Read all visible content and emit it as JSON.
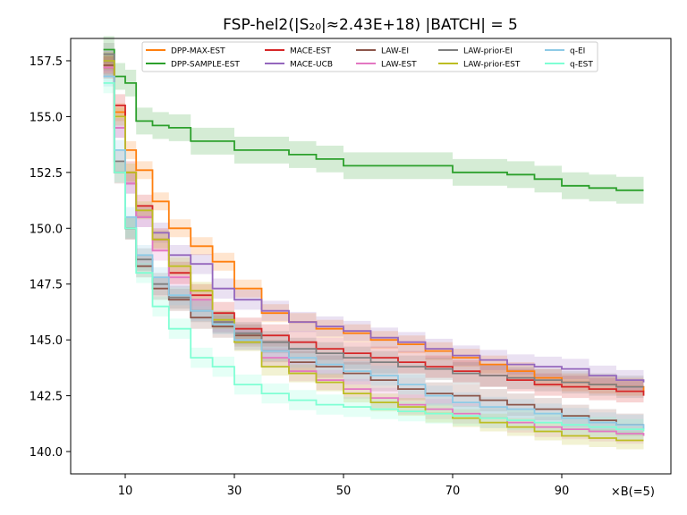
{
  "chart_data": {
    "type": "line",
    "title": "FSP-hel2(|S₂₀|≈2.43E+18) |BATCH| = 5",
    "xlabel": "×B(=5)",
    "ylabel": "",
    "xlim": [
      0,
      110
    ],
    "ylim": [
      139.0,
      158.5
    ],
    "xticks": [
      10,
      30,
      50,
      70,
      90
    ],
    "yticks": [
      140.0,
      142.5,
      145.0,
      147.5,
      150.0,
      152.5,
      155.0,
      157.5
    ],
    "x": [
      6,
      8,
      10,
      12,
      15,
      18,
      22,
      26,
      30,
      35,
      40,
      45,
      50,
      55,
      60,
      65,
      70,
      75,
      80,
      85,
      90,
      95,
      100,
      105
    ],
    "legend": {
      "position": "top-center",
      "columns": 6
    },
    "series": [
      {
        "name": "DPP-MAX-EST",
        "color": "#ff7f0e",
        "band": 0.4,
        "values": [
          157.3,
          155.2,
          153.5,
          152.6,
          151.2,
          150.0,
          149.2,
          148.5,
          147.3,
          146.2,
          145.8,
          145.5,
          145.3,
          145.0,
          144.8,
          144.5,
          144.2,
          143.9,
          143.6,
          143.3,
          143.1,
          143.0,
          142.9,
          142.7
        ]
      },
      {
        "name": "DPP-SAMPLE-EST",
        "color": "#2ca02c",
        "band": 0.6,
        "values": [
          158.0,
          156.8,
          156.5,
          154.8,
          154.6,
          154.5,
          153.9,
          153.9,
          153.5,
          153.5,
          153.3,
          153.1,
          152.8,
          152.8,
          152.8,
          152.8,
          152.5,
          152.5,
          152.4,
          152.2,
          151.9,
          151.8,
          151.7,
          151.7
        ]
      },
      {
        "name": "MACE-EST",
        "color": "#d62728",
        "band": 0.5,
        "values": [
          157.2,
          155.5,
          152.5,
          151.0,
          149.5,
          148.0,
          147.0,
          146.2,
          145.5,
          145.2,
          144.9,
          144.6,
          144.4,
          144.2,
          144.0,
          143.8,
          143.6,
          143.4,
          143.2,
          143.0,
          142.9,
          142.8,
          142.7,
          142.5
        ]
      },
      {
        "name": "MACE-UCB",
        "color": "#9467bd",
        "band": 0.45,
        "values": [
          157.5,
          154.5,
          152.0,
          150.5,
          149.8,
          148.8,
          148.4,
          147.3,
          146.8,
          146.3,
          145.8,
          145.6,
          145.4,
          145.1,
          144.9,
          144.6,
          144.3,
          144.1,
          143.9,
          143.8,
          143.7,
          143.4,
          143.2,
          143.1
        ]
      },
      {
        "name": "LAW-EI",
        "color": "#8c564b",
        "band": 0.5,
        "values": [
          157.3,
          152.5,
          150.0,
          148.3,
          147.3,
          146.8,
          146.0,
          145.6,
          145.2,
          144.5,
          144.0,
          143.8,
          143.5,
          143.2,
          142.8,
          142.6,
          142.5,
          142.3,
          142.1,
          141.9,
          141.6,
          141.4,
          141.2,
          141.2
        ]
      },
      {
        "name": "LAW-EST",
        "color": "#e377c2",
        "band": 0.45,
        "values": [
          157.2,
          154.5,
          152.0,
          150.5,
          149.0,
          147.8,
          146.8,
          145.8,
          145.0,
          144.2,
          143.6,
          143.2,
          142.8,
          142.4,
          142.1,
          141.9,
          141.7,
          141.5,
          141.3,
          141.1,
          141.0,
          140.9,
          140.8,
          140.7
        ]
      },
      {
        "name": "LAW-prior-EI",
        "color": "#7f7f7f",
        "band": 0.5,
        "values": [
          157.8,
          153.0,
          150.0,
          148.6,
          147.5,
          146.9,
          146.3,
          145.8,
          145.3,
          144.9,
          144.6,
          144.4,
          144.2,
          144.0,
          143.8,
          143.7,
          143.5,
          143.4,
          143.3,
          143.2,
          143.1,
          143.0,
          142.9,
          142.9
        ]
      },
      {
        "name": "LAW-prior-EST",
        "color": "#bcbd22",
        "band": 0.4,
        "values": [
          157.5,
          155.0,
          152.5,
          150.8,
          149.5,
          148.3,
          147.2,
          145.9,
          144.9,
          143.8,
          143.5,
          143.1,
          142.6,
          142.2,
          142.0,
          141.7,
          141.5,
          141.3,
          141.1,
          140.9,
          140.7,
          140.6,
          140.5,
          140.5
        ]
      },
      {
        "name": "q-EI",
        "color": "#8ecae6",
        "band": 0.45,
        "values": [
          156.8,
          153.5,
          150.5,
          148.8,
          147.8,
          147.0,
          146.3,
          145.7,
          145.0,
          144.5,
          144.2,
          143.9,
          143.6,
          143.4,
          143.0,
          142.5,
          142.2,
          142.0,
          141.9,
          141.7,
          141.5,
          141.3,
          141.2,
          141.0
        ]
      },
      {
        "name": "q-EST",
        "color": "#7fffd4",
        "band": 0.45,
        "values": [
          156.5,
          152.5,
          150.0,
          148.0,
          146.5,
          145.5,
          144.2,
          143.8,
          143.0,
          142.6,
          142.3,
          142.1,
          142.0,
          141.9,
          141.8,
          141.7,
          141.6,
          141.5,
          141.4,
          141.3,
          141.2,
          141.1,
          141.0,
          140.9
        ]
      }
    ]
  }
}
